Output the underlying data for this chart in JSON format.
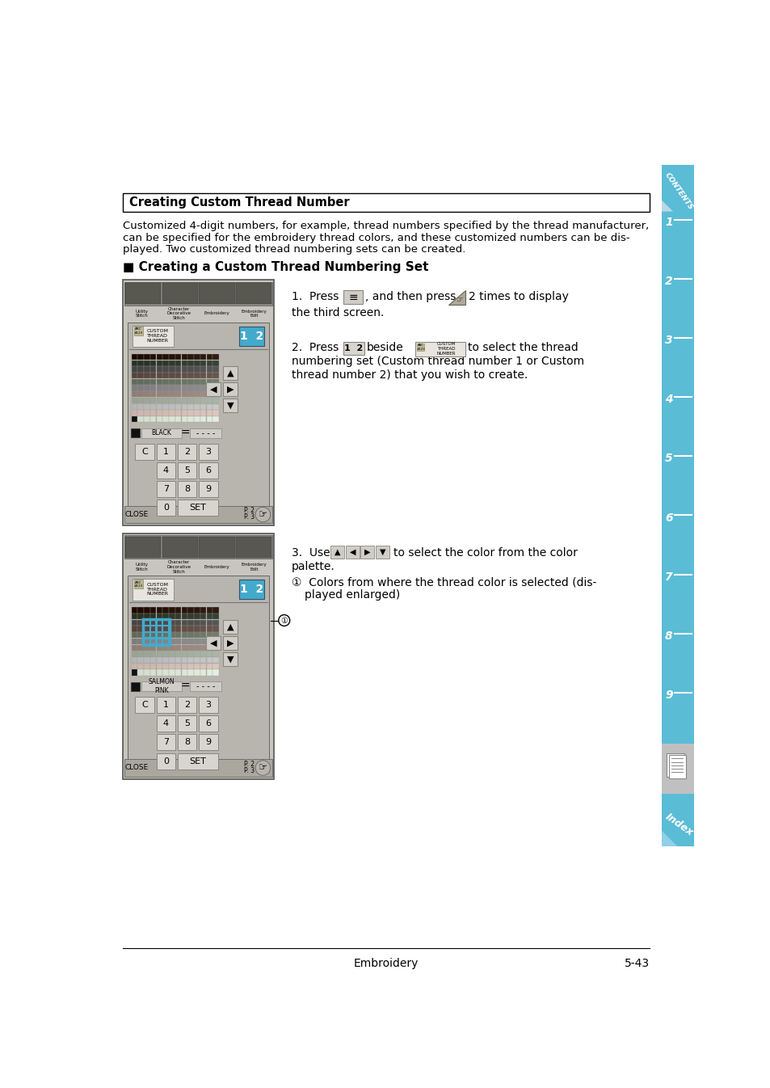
{
  "page_bg": "#ffffff",
  "sidebar_color": "#5bbcd6",
  "sidebar_gray": "#c8c8c8",
  "title_box_text": "Creating Custom Thread Number",
  "body_text_line1": "Customized 4-digit numbers, for example, thread numbers specified by the thread manufacturer,",
  "body_text_line2": "can be specified for the embroidery thread colors, and these customized numbers can be dis-",
  "body_text_line3": "played. Two customized thread numbering sets can be created.",
  "section_header": "■ Creating a Custom Thread Numbering Set",
  "footer_text": "Embroidery",
  "footer_page": "5-43",
  "panel_bg": "#c8c5be",
  "panel_inner_bg": "#b8b5ae",
  "panel_border": "#555555",
  "blue_button_color": "#44aacc",
  "btn_bg": "#d8d5ce",
  "toolbar_bg": "#888880",
  "toolbar_item_bg": "#706e68"
}
